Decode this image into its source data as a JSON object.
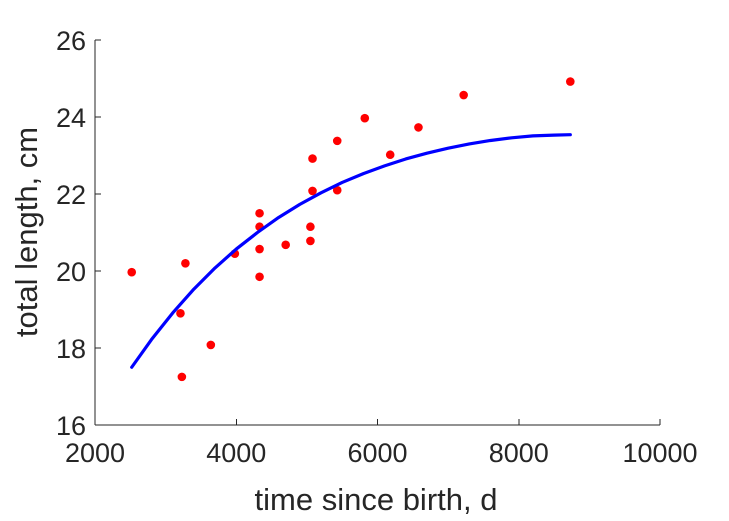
{
  "chart_data": {
    "type": "scatter",
    "xlabel": "time since birth, d",
    "ylabel": "total length, cm",
    "xlim": [
      2000,
      10000
    ],
    "ylim": [
      16,
      26
    ],
    "xticks": [
      2000,
      4000,
      6000,
      8000,
      10000
    ],
    "yticks": [
      16,
      18,
      20,
      22,
      24,
      26
    ],
    "grid": false,
    "series": [
      {
        "kind": "scatter",
        "color": "#ff0000",
        "points": [
          [
            2520,
            19.97
          ],
          [
            3210,
            18.9
          ],
          [
            3230,
            17.25
          ],
          [
            3280,
            20.2
          ],
          [
            3640,
            18.08
          ],
          [
            3980,
            20.45
          ],
          [
            4330,
            21.5
          ],
          [
            4330,
            21.15
          ],
          [
            4330,
            20.57
          ],
          [
            4330,
            19.85
          ],
          [
            4700,
            20.68
          ],
          [
            5050,
            21.15
          ],
          [
            5050,
            20.78
          ],
          [
            5080,
            22.92
          ],
          [
            5080,
            22.08
          ],
          [
            5430,
            23.38
          ],
          [
            5430,
            22.1
          ],
          [
            5820,
            23.97
          ],
          [
            6180,
            23.02
          ],
          [
            6580,
            23.73
          ],
          [
            7220,
            24.57
          ],
          [
            8730,
            24.92
          ]
        ]
      },
      {
        "kind": "line",
        "color": "#0000ff",
        "x": [
          2520,
          2800,
          3100,
          3400,
          3700,
          4000,
          4300,
          4600,
          4900,
          5200,
          5500,
          5800,
          6100,
          6400,
          6700,
          7000,
          7300,
          7600,
          7900,
          8200,
          8500,
          8730
        ],
        "y": [
          17.5,
          18.22,
          18.91,
          19.53,
          20.08,
          20.57,
          21.0,
          21.39,
          21.73,
          22.03,
          22.3,
          22.53,
          22.73,
          22.91,
          23.06,
          23.19,
          23.3,
          23.39,
          23.46,
          23.51,
          23.53,
          23.54
        ]
      }
    ]
  }
}
